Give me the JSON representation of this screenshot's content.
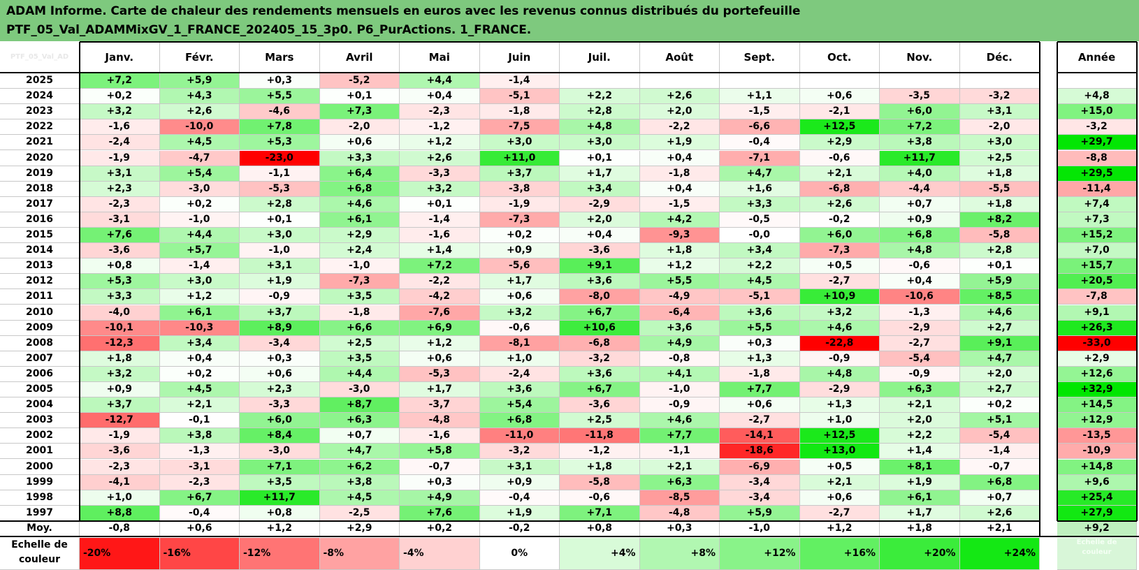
{
  "title_lines": [
    "ADAM Informe. Carte de chaleur des rendements mensuels en euros avec les revenus connus distribués du portefeuille",
    "PTF_05_Val_ADAMMixGV_1_FRANCE_202405_15_3p0. P6_PurActions. 1_FRANCE."
  ],
  "colors": {
    "header_bg": "#7ec97e",
    "negative_max": "#ff0000",
    "positive_max": "#00e000",
    "neutral": "#ffffff"
  },
  "chart_data": {
    "type": "heatmap",
    "corner_label": "PTF_05_Val_AD",
    "columns": [
      "Janv.",
      "Févr.",
      "Mars",
      "Avril",
      "Mai",
      "Juin",
      "Juil.",
      "Août",
      "Sept.",
      "Oct.",
      "Nov.",
      "Déc."
    ],
    "year_column_label": "Année",
    "rows": [
      {
        "year": "2025",
        "values": [
          "+7,2",
          "+5,9",
          "+0,3",
          "-5,2",
          "+4,4",
          "-1,4",
          "",
          "",
          "",
          "",
          "",
          ""
        ],
        "annual": ""
      },
      {
        "year": "2024",
        "values": [
          "+0,2",
          "+4,3",
          "+5,5",
          "+0,1",
          "+0,4",
          "-5,1",
          "+2,2",
          "+2,6",
          "+1,1",
          "+0,6",
          "-3,5",
          "-3,2"
        ],
        "annual": "+4,8"
      },
      {
        "year": "2023",
        "values": [
          "+3,2",
          "+2,6",
          "-4,6",
          "+7,3",
          "-2,3",
          "-1,8",
          "+2,8",
          "+2,0",
          "-1,5",
          "-2,1",
          "+6,0",
          "+3,1"
        ],
        "annual": "+15,0"
      },
      {
        "year": "2022",
        "values": [
          "-1,6",
          "-10,0",
          "+7,8",
          "-2,0",
          "-1,2",
          "-7,5",
          "+4,8",
          "-2,2",
          "-6,6",
          "+12,5",
          "+7,2",
          "-2,0"
        ],
        "annual": "-3,2"
      },
      {
        "year": "2021",
        "values": [
          "-2,4",
          "+4,5",
          "+5,3",
          "+0,6",
          "+1,2",
          "+3,0",
          "+3,0",
          "+1,9",
          "-0,4",
          "+2,9",
          "+3,8",
          "+3,0"
        ],
        "annual": "+29,7"
      },
      {
        "year": "2020",
        "values": [
          "-1,9",
          "-4,7",
          "-23,0",
          "+3,3",
          "+2,6",
          "+11,0",
          "+0,1",
          "+0,4",
          "-7,1",
          "-0,6",
          "+11,7",
          "+2,5"
        ],
        "annual": "-8,8"
      },
      {
        "year": "2019",
        "values": [
          "+3,1",
          "+5,4",
          "-1,1",
          "+6,4",
          "-3,3",
          "+3,7",
          "+1,7",
          "-1,8",
          "+4,7",
          "+2,1",
          "+4,0",
          "+1,8"
        ],
        "annual": "+29,5"
      },
      {
        "year": "2018",
        "values": [
          "+2,3",
          "-3,0",
          "-5,3",
          "+6,8",
          "+3,2",
          "-3,8",
          "+3,4",
          "+0,4",
          "+1,6",
          "-6,8",
          "-4,4",
          "-5,5"
        ],
        "annual": "-11,4"
      },
      {
        "year": "2017",
        "values": [
          "-2,3",
          "+0,2",
          "+2,8",
          "+4,6",
          "+0,1",
          "-1,9",
          "-2,9",
          "-1,5",
          "+3,3",
          "+2,6",
          "+0,7",
          "+1,8"
        ],
        "annual": "+7,4"
      },
      {
        "year": "2016",
        "values": [
          "-3,1",
          "-1,0",
          "+0,1",
          "+6,1",
          "-1,4",
          "-7,3",
          "+2,0",
          "+4,2",
          "-0,5",
          "-0,2",
          "+0,9",
          "+8,2"
        ],
        "annual": "+7,3"
      },
      {
        "year": "2015",
        "values": [
          "+7,6",
          "+4,4",
          "+3,0",
          "+2,9",
          "-1,6",
          "+0,2",
          "+0,4",
          "-9,3",
          "-0,0",
          "+6,0",
          "+6,8",
          "-5,8"
        ],
        "annual": "+15,2"
      },
      {
        "year": "2014",
        "values": [
          "-3,6",
          "+5,7",
          "-1,0",
          "+2,4",
          "+1,4",
          "+0,9",
          "-3,6",
          "+1,8",
          "+3,4",
          "-7,3",
          "+4,8",
          "+2,8"
        ],
        "annual": "+7,0"
      },
      {
        "year": "2013",
        "values": [
          "+0,8",
          "-1,4",
          "+3,1",
          "-1,0",
          "+7,2",
          "-5,6",
          "+9,1",
          "+1,2",
          "+2,2",
          "+0,5",
          "-0,6",
          "+0,1"
        ],
        "annual": "+15,7"
      },
      {
        "year": "2012",
        "values": [
          "+5,3",
          "+3,0",
          "+1,9",
          "-7,3",
          "-2,2",
          "+1,7",
          "+3,6",
          "+5,5",
          "+4,5",
          "-2,7",
          "+0,4",
          "+5,9"
        ],
        "annual": "+20,5"
      },
      {
        "year": "2011",
        "values": [
          "+3,3",
          "+1,2",
          "-0,9",
          "+3,5",
          "-4,2",
          "+0,6",
          "-8,0",
          "-4,9",
          "-5,1",
          "+10,9",
          "-10,6",
          "+8,5"
        ],
        "annual": "-7,8"
      },
      {
        "year": "2010",
        "values": [
          "-4,0",
          "+6,1",
          "+3,7",
          "-1,8",
          "-7,6",
          "+3,2",
          "+6,7",
          "-6,4",
          "+3,6",
          "+3,2",
          "-1,3",
          "+4,6"
        ],
        "annual": "+9,1"
      },
      {
        "year": "2009",
        "values": [
          "-10,1",
          "-10,3",
          "+8,9",
          "+6,6",
          "+6,9",
          "-0,6",
          "+10,6",
          "+3,6",
          "+5,5",
          "+4,6",
          "-2,9",
          "+2,7"
        ],
        "annual": "+26,3"
      },
      {
        "year": "2008",
        "values": [
          "-12,3",
          "+3,4",
          "-3,4",
          "+2,5",
          "+1,2",
          "-8,1",
          "-6,8",
          "+4,9",
          "+0,3",
          "-22,8",
          "-2,7",
          "+9,1"
        ],
        "annual": "-33,0"
      },
      {
        "year": "2007",
        "values": [
          "+1,8",
          "+0,4",
          "+0,3",
          "+3,5",
          "+0,6",
          "+1,0",
          "-3,2",
          "-0,8",
          "+1,3",
          "-0,9",
          "-5,4",
          "+4,7"
        ],
        "annual": "+2,9"
      },
      {
        "year": "2006",
        "values": [
          "+3,2",
          "+0,2",
          "+0,6",
          "+4,4",
          "-5,3",
          "-2,4",
          "+3,6",
          "+4,1",
          "-1,8",
          "+4,8",
          "-0,9",
          "+2,0"
        ],
        "annual": "+12,6"
      },
      {
        "year": "2005",
        "values": [
          "+0,9",
          "+4,5",
          "+2,3",
          "-3,0",
          "+1,7",
          "+3,6",
          "+6,7",
          "-1,0",
          "+7,7",
          "-2,9",
          "+6,3",
          "+2,7"
        ],
        "annual": "+32,9"
      },
      {
        "year": "2004",
        "values": [
          "+3,7",
          "+2,1",
          "-3,3",
          "+8,7",
          "-3,7",
          "+5,4",
          "-3,6",
          "-0,9",
          "+0,6",
          "+1,3",
          "+2,1",
          "+0,2"
        ],
        "annual": "+14,5"
      },
      {
        "year": "2003",
        "values": [
          "-12,7",
          "-0,1",
          "+6,0",
          "+6,3",
          "-4,8",
          "+6,8",
          "+2,5",
          "+4,6",
          "-2,7",
          "+1,0",
          "+2,0",
          "+5,1"
        ],
        "annual": "+12,9"
      },
      {
        "year": "2002",
        "values": [
          "-1,9",
          "+3,8",
          "+8,4",
          "+0,7",
          "-1,6",
          "-11,0",
          "-11,8",
          "+7,7",
          "-14,1",
          "+12,5",
          "+2,2",
          "-5,4"
        ],
        "annual": "-13,5"
      },
      {
        "year": "2001",
        "values": [
          "-3,6",
          "-1,3",
          "-3,0",
          "+4,7",
          "+5,8",
          "-3,2",
          "-1,2",
          "-1,1",
          "-18,6",
          "+13,0",
          "+1,4",
          "-1,4"
        ],
        "annual": "-10,9"
      },
      {
        "year": "2000",
        "values": [
          "-2,3",
          "-3,1",
          "+7,1",
          "+6,2",
          "-0,7",
          "+3,1",
          "+1,8",
          "+2,1",
          "-6,9",
          "+0,5",
          "+8,1",
          "-0,7"
        ],
        "annual": "+14,8"
      },
      {
        "year": "1999",
        "values": [
          "-4,1",
          "-2,3",
          "+3,5",
          "+3,8",
          "+0,3",
          "+0,9",
          "-5,8",
          "+6,3",
          "-3,4",
          "+2,1",
          "+1,9",
          "+6,8"
        ],
        "annual": "+9,6"
      },
      {
        "year": "1998",
        "values": [
          "+1,0",
          "+6,7",
          "+11,7",
          "+4,5",
          "+4,9",
          "-0,4",
          "-0,6",
          "-8,5",
          "-3,4",
          "+0,6",
          "+6,1",
          "+0,7"
        ],
        "annual": "+25,4"
      },
      {
        "year": "1997",
        "values": [
          "+8,8",
          "-0,4",
          "+0,8",
          "-2,5",
          "+7,6",
          "+1,9",
          "+7,1",
          "-4,8",
          "+5,9",
          "-2,7",
          "+1,7",
          "+2,6"
        ],
        "annual": "+27,9"
      }
    ],
    "average_row": {
      "label": "Moy.",
      "values": [
        "-0,8",
        "+0,6",
        "+1,2",
        "+2,9",
        "+0,2",
        "-0,2",
        "+0,8",
        "+0,3",
        "-1,0",
        "+1,2",
        "+1,8",
        "+2,1"
      ],
      "annual": "+9,2"
    },
    "scale": {
      "label": "Echelle de couleur",
      "values": [
        -20,
        -16,
        -12,
        -8,
        -4,
        0,
        4,
        8,
        12,
        16,
        20,
        24
      ],
      "labels": [
        "-20%",
        "-16%",
        "-12%",
        "-8%",
        "-4%",
        "0%",
        "+4%",
        "+8%",
        "+12%",
        "+16%",
        "+20%",
        "+24%"
      ],
      "annual_caption": "Echelle de couleur"
    }
  }
}
